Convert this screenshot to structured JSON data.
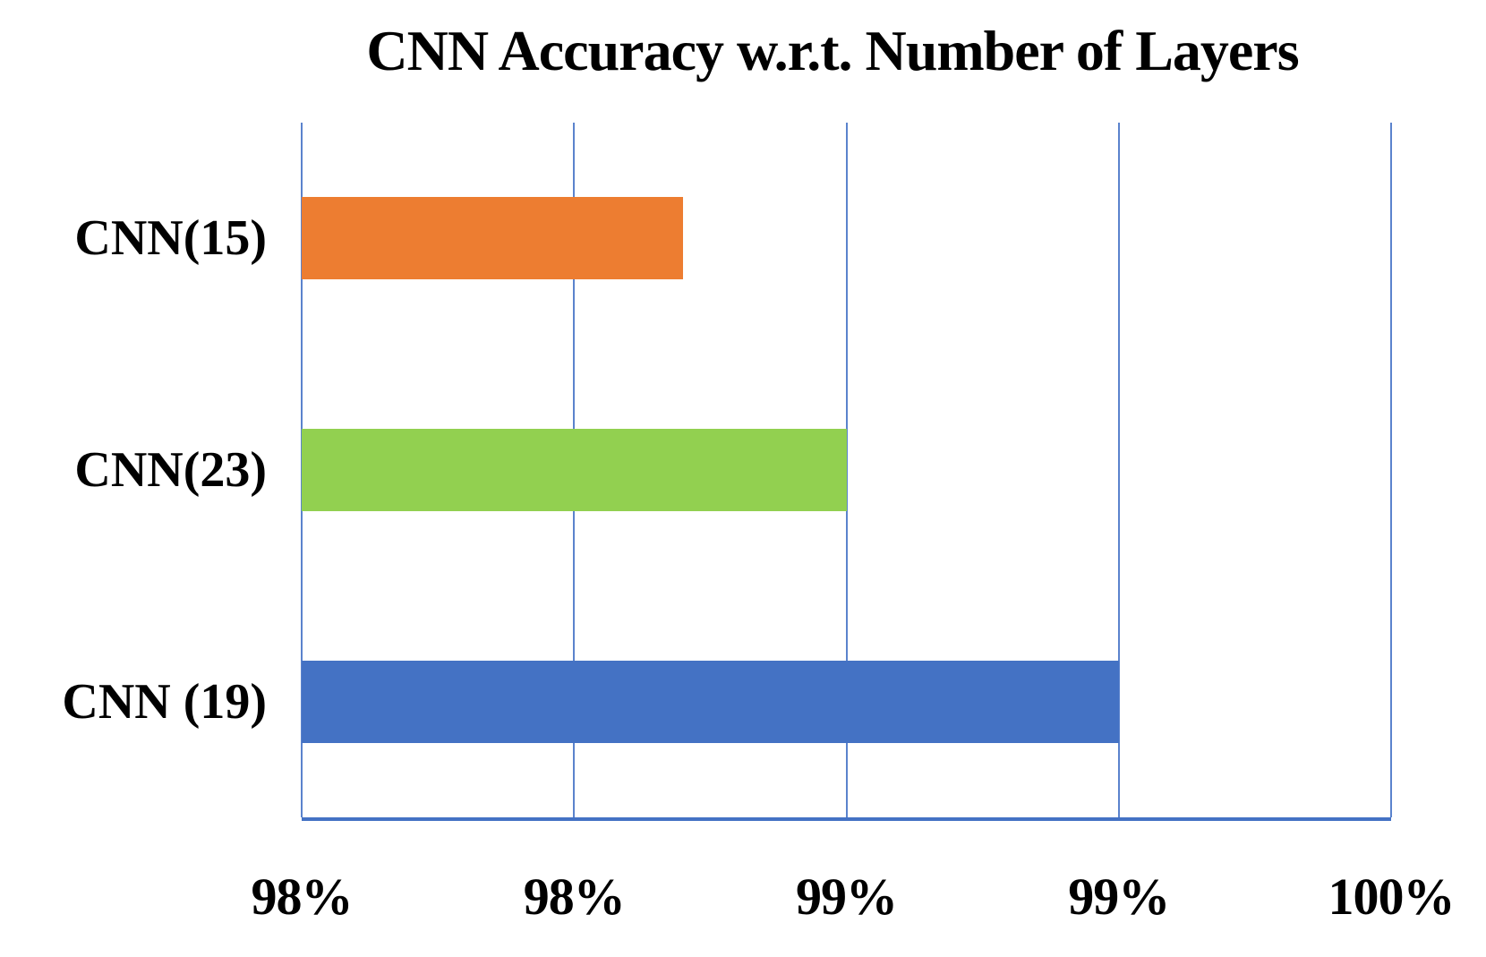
{
  "chart_data": {
    "type": "bar",
    "orientation": "horizontal",
    "title": "CNN Accuracy w.r.t. Number of Layers",
    "categories": [
      "CNN(15)",
      "CNN(23)",
      "CNN (19)"
    ],
    "values": [
      98.7,
      99.0,
      99.5
    ],
    "value_unit": "%",
    "xlim": [
      98,
      100
    ],
    "x_tick_labels": [
      "98%",
      "98%",
      "99%",
      "99%",
      "100%"
    ],
    "xlabel": "",
    "ylabel": "",
    "legend": "none",
    "grid": "vertical",
    "bar_colors": [
      "#ED7D31",
      "#92D050",
      "#4472C4"
    ],
    "gridline_color": "#5B83CD",
    "axis_line_color": "#4472C4",
    "text_color": "#000000"
  }
}
